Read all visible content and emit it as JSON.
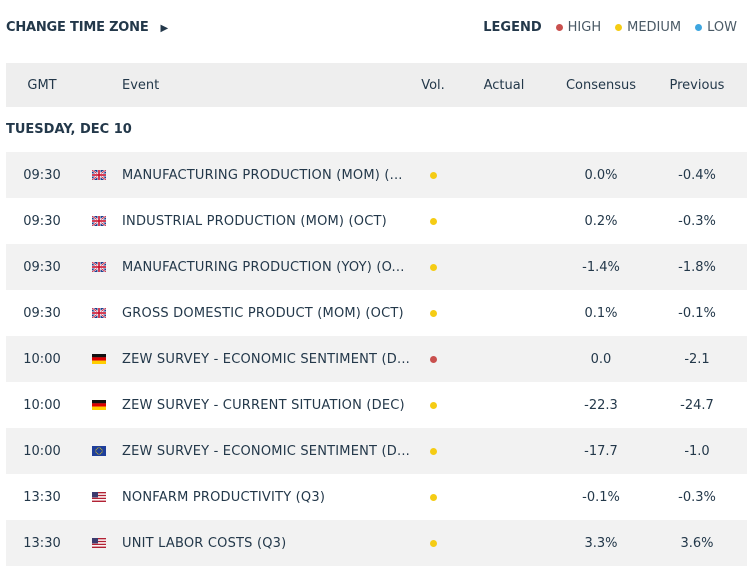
{
  "toolbar": {
    "time_zone_button": "CHANGE TIME ZONE",
    "legend_title": "LEGEND",
    "legend": [
      {
        "label": "HIGH",
        "color": "#c9504e"
      },
      {
        "label": "MEDIUM",
        "color": "#f5cc14"
      },
      {
        "label": "LOW",
        "color": "#3ea6e0"
      }
    ]
  },
  "table": {
    "columns": [
      "GMT",
      "Event",
      "Vol.",
      "Actual",
      "Consensus",
      "Previous"
    ],
    "date": "TUESDAY, DEC 10",
    "rows": [
      {
        "time": "09:30",
        "flag": "uk",
        "event": "MANUFACTURING PRODUCTION (MOM) (...",
        "volatility": 1,
        "consensus": "0.0%",
        "previous": "-0.4%"
      },
      {
        "time": "09:30",
        "flag": "uk",
        "event": "INDUSTRIAL PRODUCTION (MOM) (OCT)",
        "volatility": 1,
        "consensus": "0.2%",
        "previous": "-0.3%"
      },
      {
        "time": "09:30",
        "flag": "uk",
        "event": "MANUFACTURING PRODUCTION (YOY) (O...",
        "volatility": 1,
        "consensus": "-1.4%",
        "previous": "-1.8%"
      },
      {
        "time": "09:30",
        "flag": "uk",
        "event": "GROSS DOMESTIC PRODUCT (MOM) (OCT)",
        "volatility": 1,
        "consensus": "0.1%",
        "previous": "-0.1%"
      },
      {
        "time": "10:00",
        "flag": "de",
        "event": "ZEW SURVEY - ECONOMIC SENTIMENT (D...",
        "volatility": 0,
        "consensus": "0.0",
        "previous": "-2.1"
      },
      {
        "time": "10:00",
        "flag": "de",
        "event": "ZEW SURVEY - CURRENT SITUATION (DEC)",
        "volatility": 1,
        "consensus": "-22.3",
        "previous": "-24.7"
      },
      {
        "time": "10:00",
        "flag": "eu",
        "event": "ZEW SURVEY - ECONOMIC SENTIMENT (D...",
        "volatility": 1,
        "consensus": "-17.7",
        "previous": "-1.0"
      },
      {
        "time": "13:30",
        "flag": "us",
        "event": "NONFARM PRODUCTIVITY (Q3)",
        "volatility": 1,
        "consensus": "-0.1%",
        "previous": "-0.3%"
      },
      {
        "time": "13:30",
        "flag": "us",
        "event": "UNIT LABOR COSTS (Q3)",
        "volatility": 1,
        "consensus": "3.3%",
        "previous": "3.6%"
      }
    ]
  }
}
